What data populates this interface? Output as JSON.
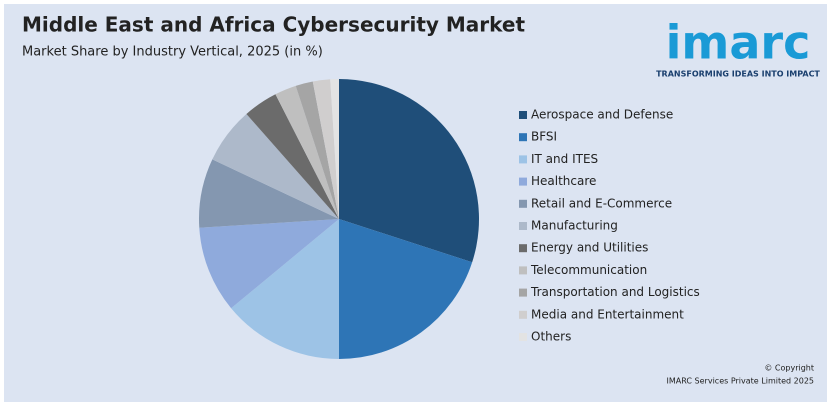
{
  "chart_data": {
    "type": "pie",
    "title": "Middle East and Africa Cybersecurity Market",
    "subtitle": "Market Share by Industry Vertical, 2025 (in %)",
    "categories": [
      "Aerospace and Defense",
      "BFSI",
      "IT and ITES",
      "Healthcare",
      "Retail and E-Commerce",
      "Manufacturing",
      "Energy and Utilities",
      "Telecommunication",
      "Transportation and Logistics",
      "Media and Entertainment",
      "Others"
    ],
    "values": [
      30,
      20,
      14,
      10,
      8,
      6.5,
      4,
      2.5,
      2,
      2,
      1
    ],
    "colors": [
      "#1f4e79",
      "#2e75b6",
      "#9dc3e6",
      "#8faadc",
      "#8497b0",
      "#adb9ca",
      "#6b6b6b",
      "#bfbfbf",
      "#a5a5a5",
      "#d0cece",
      "#e3e3e3"
    ],
    "legend": "right"
  },
  "logo": {
    "name": "imarc",
    "tagline": "TRANSFORMING IDEAS INTO IMPACT"
  },
  "copyright": [
    "© Copyright",
    "IMARC Services Private Limited 2025"
  ]
}
